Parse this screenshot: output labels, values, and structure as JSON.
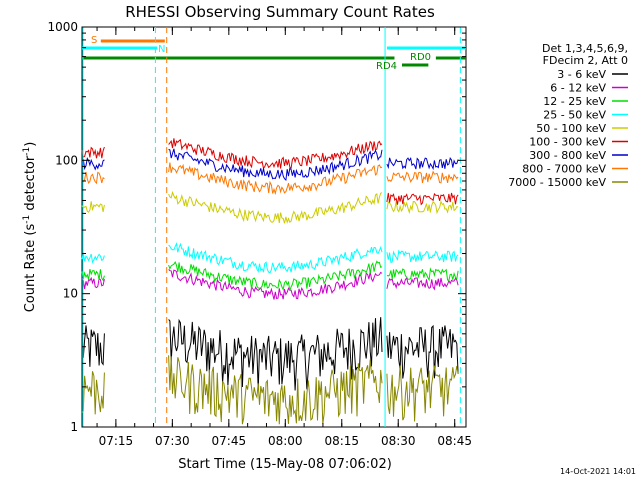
{
  "chart_data": {
    "type": "line",
    "title": "RHESSI Observing Summary Count Rates",
    "xlabel": "Start Time (15-May-08 07:06:02)",
    "ylabel": "Count Rate (s⁻¹ detector⁻¹)",
    "ylabel_parts": {
      "main": "Count Rate (s",
      "sup1": "-1",
      "mid": " detector",
      "sup2": "-1",
      "end": ")"
    },
    "yscale": "log",
    "ylim": [
      1,
      1000
    ],
    "xlim": [
      "07:06",
      "08:48"
    ],
    "xticks": [
      "07:15",
      "07:30",
      "07:45",
      "08:00",
      "08:15",
      "08:30",
      "08:45"
    ],
    "yticks": [
      "1",
      "10",
      "100",
      "1000"
    ],
    "timestamp": "14-Oct-2021 14:01",
    "legend": {
      "header": [
        "Det 1,3,4,5,6,9,",
        "FDecim 2, Att 0"
      ],
      "position": "right"
    },
    "series": [
      {
        "name": "3 - 6 keV",
        "color": "#000000",
        "level": 4.0
      },
      {
        "name": "6 - 12 keV",
        "color": "#cc00cc",
        "level": 12
      },
      {
        "name": "12 - 25 keV",
        "color": "#00dd00",
        "level": 14
      },
      {
        "name": "25 - 50 keV",
        "color": "#00ffff",
        "level": 19
      },
      {
        "name": "50 - 100 keV",
        "color": "#cccc00",
        "level": 45
      },
      {
        "name": "100 - 300 keV",
        "color": "#dd0000",
        "level": 115
      },
      {
        "name": "300 - 800 keV",
        "color": "#0000cc",
        "level": 95
      },
      {
        "name": "800 - 7000 keV",
        "color": "#ff7700",
        "level": 75
      },
      {
        "name": "7000 - 15000 keV",
        "color": "#888800",
        "level": 2.0
      }
    ],
    "annotations": {
      "S_label": "S",
      "N_label": "N",
      "RD0_label": "RD0",
      "RD4_label": "RD4"
    },
    "colors": {
      "night": "#00ffff",
      "saa": "#ff7700",
      "flags": "#008800"
    }
  }
}
